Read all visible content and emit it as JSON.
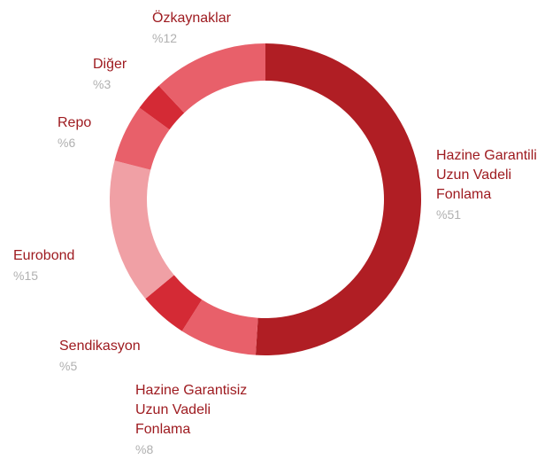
{
  "chart_data": {
    "type": "donut",
    "categories": [
      "Hazine Garantili Uzun Vadeli Fonlama",
      "Hazine Garantisiz Uzun Vadeli Fonlama",
      "Sendikasyon",
      "Eurobond",
      "Repo",
      "Diğer",
      "Özkaynaklar"
    ],
    "values": [
      51,
      8,
      5,
      15,
      6,
      3,
      12
    ],
    "value_labels": [
      "%51",
      "%8",
      "%5",
      "%15",
      "%6",
      "%3",
      "%12"
    ],
    "colors": [
      "#b01e24",
      "#e8606a",
      "#d42a35",
      "#f0a0a5",
      "#e8606a",
      "#d42a35",
      "#e8606a"
    ]
  }
}
